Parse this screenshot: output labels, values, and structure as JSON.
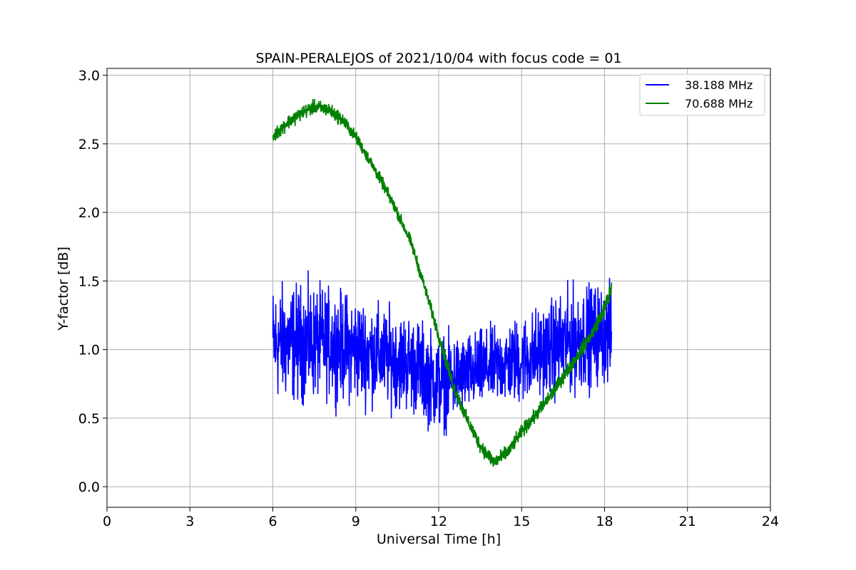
{
  "chart_data": {
    "type": "line",
    "title": "SPAIN-PERALEJOS of 2021/10/04 with focus code = 01",
    "xlabel": "Universal Time [h]",
    "ylabel": "Y-factor [dB]",
    "xlim": [
      0,
      24
    ],
    "ylim": [
      -0.15,
      3.05
    ],
    "xticks": [
      "0",
      "3",
      "6",
      "9",
      "12",
      "15",
      "18",
      "21",
      "24"
    ],
    "yticks": [
      "0.0",
      "0.5",
      "1.0",
      "1.5",
      "2.0",
      "2.5",
      "3.0"
    ],
    "grid": true,
    "legend_position": "top-right",
    "series": [
      {
        "name": "38.188 MHz",
        "color": "#0000ff",
        "x": [
          6.0,
          7.0,
          8.0,
          9.0,
          10.0,
          11.0,
          12.0,
          13.0,
          14.0,
          15.0,
          16.0,
          17.0,
          18.0,
          18.25
        ],
        "y": [
          1.05,
          1.05,
          1.05,
          1.0,
          0.95,
          0.9,
          0.75,
          0.82,
          0.88,
          0.92,
          1.0,
          1.08,
          1.12,
          1.1
        ],
        "spread": [
          0.6,
          0.6,
          0.55,
          0.55,
          0.5,
          0.5,
          0.5,
          0.4,
          0.4,
          0.45,
          0.5,
          0.55,
          0.5,
          0.5
        ]
      },
      {
        "name": "70.688 MHz",
        "color": "#008000",
        "x": [
          6.0,
          6.5,
          7.0,
          7.5,
          8.0,
          8.5,
          9.0,
          9.5,
          10.0,
          10.5,
          11.0,
          11.5,
          12.0,
          12.5,
          13.0,
          13.5,
          14.0,
          14.5,
          15.0,
          15.5,
          16.0,
          16.5,
          17.0,
          17.5,
          18.0,
          18.25
        ],
        "y": [
          2.55,
          2.65,
          2.72,
          2.77,
          2.75,
          2.68,
          2.55,
          2.38,
          2.2,
          2.0,
          1.78,
          1.45,
          1.1,
          0.75,
          0.5,
          0.3,
          0.18,
          0.25,
          0.4,
          0.52,
          0.65,
          0.8,
          0.95,
          1.1,
          1.3,
          1.45
        ],
        "spread": [
          0.07,
          0.07,
          0.07,
          0.07,
          0.07,
          0.07,
          0.06,
          0.06,
          0.06,
          0.06,
          0.06,
          0.06,
          0.07,
          0.07,
          0.07,
          0.07,
          0.08,
          0.07,
          0.07,
          0.07,
          0.07,
          0.07,
          0.07,
          0.07,
          0.08,
          0.1
        ]
      }
    ]
  }
}
